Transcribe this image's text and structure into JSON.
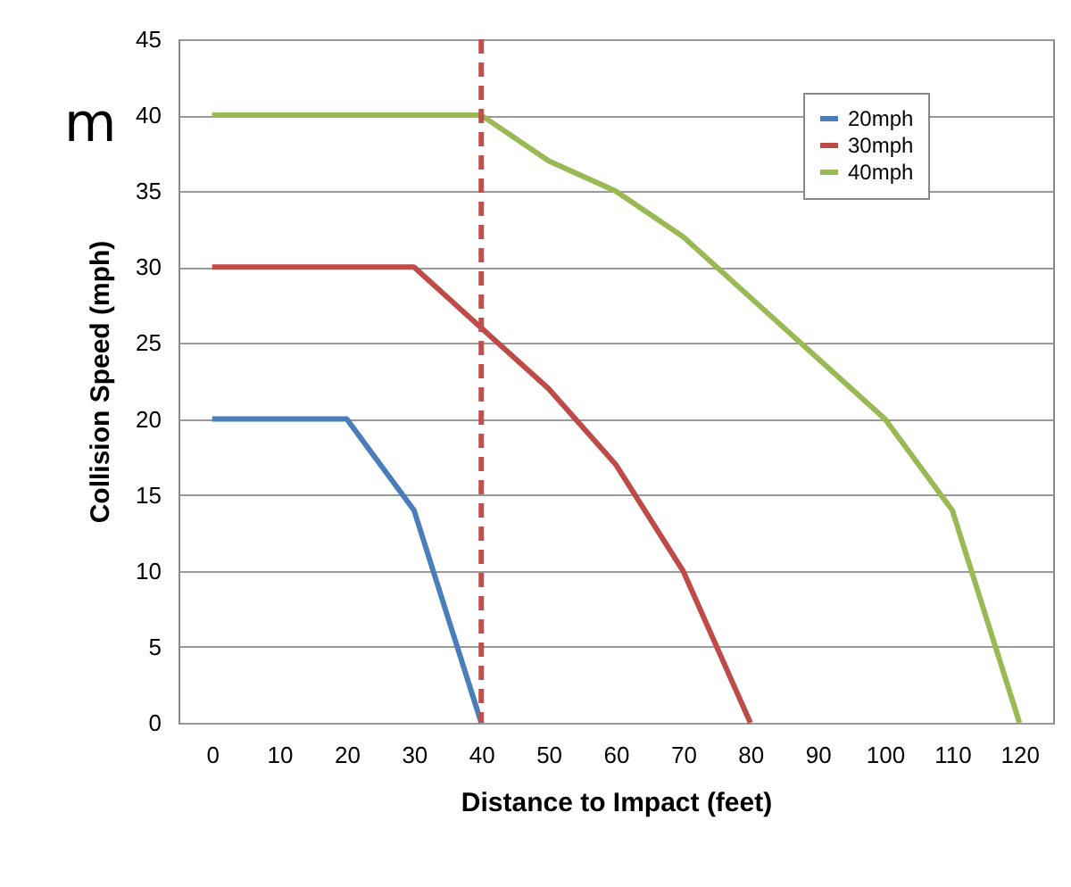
{
  "chart_data": {
    "type": "line",
    "xlabel": "Distance to  Impact (feet)",
    "ylabel": "Collision Speed (mph)",
    "x": [
      0,
      10,
      20,
      30,
      40,
      50,
      60,
      70,
      80,
      90,
      100,
      110,
      120
    ],
    "series": [
      {
        "name": "20mph",
        "color": "#4a7ebb",
        "values": [
          20,
          20,
          20,
          14,
          0,
          null,
          null,
          null,
          null,
          null,
          null,
          null,
          null
        ]
      },
      {
        "name": "30mph",
        "color": "#be4b48",
        "values": [
          30,
          30,
          30,
          30,
          26,
          22,
          17,
          10,
          0,
          null,
          null,
          null,
          null
        ]
      },
      {
        "name": "40mph",
        "color": "#98b954",
        "values": [
          40,
          40,
          40,
          40,
          40,
          37,
          35,
          32,
          28,
          24,
          20,
          14,
          0
        ]
      }
    ],
    "xlim": [
      -5,
      125
    ],
    "xticks": [
      0,
      10,
      20,
      30,
      40,
      50,
      60,
      70,
      80,
      90,
      100,
      110,
      120
    ],
    "ylim": [
      0,
      45
    ],
    "yticks": [
      0,
      5,
      10,
      15,
      20,
      25,
      30,
      35,
      40,
      45
    ],
    "ref_lines": [
      {
        "axis": "x",
        "value": 40,
        "color": "#c0504d",
        "line_style": "dashed"
      }
    ],
    "annotations": [
      "m"
    ],
    "grid": "y",
    "legend": "top right",
    "marker": "none",
    "line_style": "solid"
  }
}
